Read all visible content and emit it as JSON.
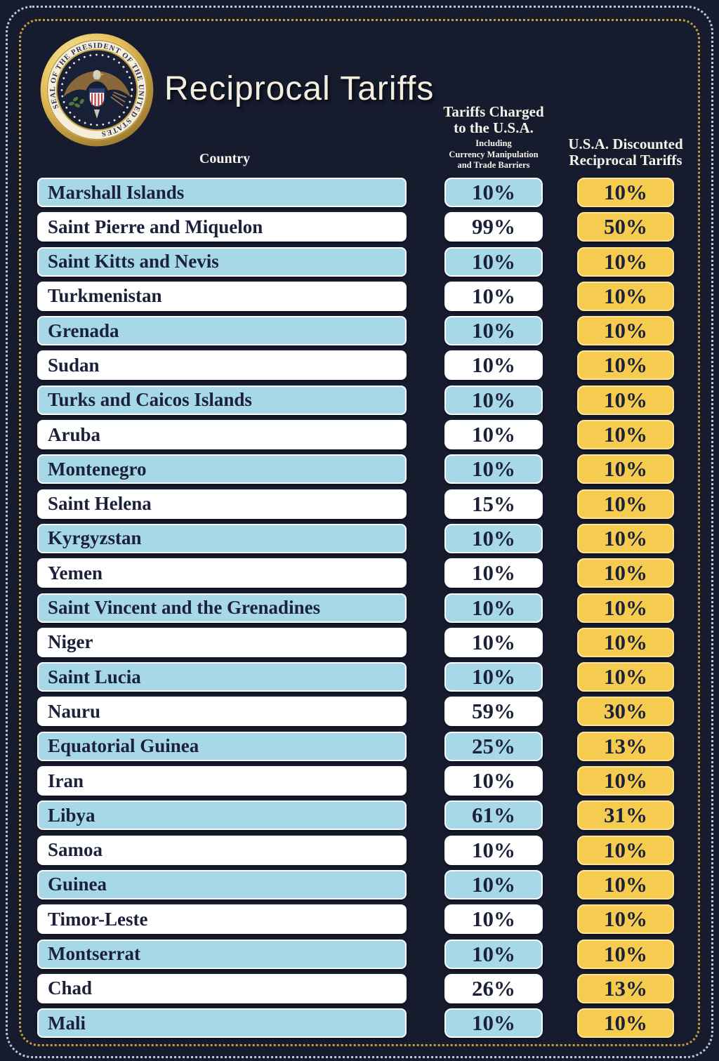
{
  "header": {
    "title": "Reciprocal Tariffs",
    "seal": {
      "name": "presidential-seal",
      "ring_text": "SEAL OF THE PRESIDENT OF THE UNITED STATES"
    },
    "columns": {
      "country_label": "Country",
      "charged_line1": "Tariffs Charged",
      "charged_line2": "to the U.S.A.",
      "charged_sub1": "Including",
      "charged_sub2": "Currency Manipulation",
      "charged_sub3": "and Trade Barriers",
      "discounted_line1": "U.S.A. Discounted",
      "discounted_line2": "Reciprocal Tariffs"
    }
  },
  "colors": {
    "background": "#161b2e",
    "row_blue": "#a7d8e8",
    "row_white": "#ffffff",
    "result_gold": "#f5cc50",
    "cell_text": "#1a2138",
    "header_text": "#f6f3ea",
    "outer_dotted_border": "#b9c8de",
    "inner_dotted_border": "#c59f3e"
  },
  "chart_data": {
    "type": "table",
    "title": "Reciprocal Tariffs",
    "columns": [
      "Country",
      "Tariffs Charged to the U.S.A. Including Currency Manipulation and Trade Barriers",
      "U.S.A. Discounted Reciprocal Tariffs"
    ],
    "rows": [
      {
        "country": "Marshall Islands",
        "charged": "10%",
        "discounted": "10%"
      },
      {
        "country": "Saint Pierre and Miquelon",
        "charged": "99%",
        "discounted": "50%"
      },
      {
        "country": "Saint Kitts and Nevis",
        "charged": "10%",
        "discounted": "10%"
      },
      {
        "country": "Turkmenistan",
        "charged": "10%",
        "discounted": "10%"
      },
      {
        "country": "Grenada",
        "charged": "10%",
        "discounted": "10%"
      },
      {
        "country": "Sudan",
        "charged": "10%",
        "discounted": "10%"
      },
      {
        "country": "Turks and Caicos Islands",
        "charged": "10%",
        "discounted": "10%"
      },
      {
        "country": "Aruba",
        "charged": "10%",
        "discounted": "10%"
      },
      {
        "country": "Montenegro",
        "charged": "10%",
        "discounted": "10%"
      },
      {
        "country": "Saint Helena",
        "charged": "15%",
        "discounted": "10%"
      },
      {
        "country": "Kyrgyzstan",
        "charged": "10%",
        "discounted": "10%"
      },
      {
        "country": "Yemen",
        "charged": "10%",
        "discounted": "10%"
      },
      {
        "country": "Saint Vincent and the Grenadines",
        "charged": "10%",
        "discounted": "10%"
      },
      {
        "country": "Niger",
        "charged": "10%",
        "discounted": "10%"
      },
      {
        "country": "Saint Lucia",
        "charged": "10%",
        "discounted": "10%"
      },
      {
        "country": "Nauru",
        "charged": "59%",
        "discounted": "30%"
      },
      {
        "country": "Equatorial Guinea",
        "charged": "25%",
        "discounted": "13%"
      },
      {
        "country": "Iran",
        "charged": "10%",
        "discounted": "10%"
      },
      {
        "country": "Libya",
        "charged": "61%",
        "discounted": "31%"
      },
      {
        "country": "Samoa",
        "charged": "10%",
        "discounted": "10%"
      },
      {
        "country": "Guinea",
        "charged": "10%",
        "discounted": "10%"
      },
      {
        "country": "Timor-Leste",
        "charged": "10%",
        "discounted": "10%"
      },
      {
        "country": "Montserrat",
        "charged": "10%",
        "discounted": "10%"
      },
      {
        "country": "Chad",
        "charged": "26%",
        "discounted": "13%"
      },
      {
        "country": "Mali",
        "charged": "10%",
        "discounted": "10%"
      }
    ]
  }
}
